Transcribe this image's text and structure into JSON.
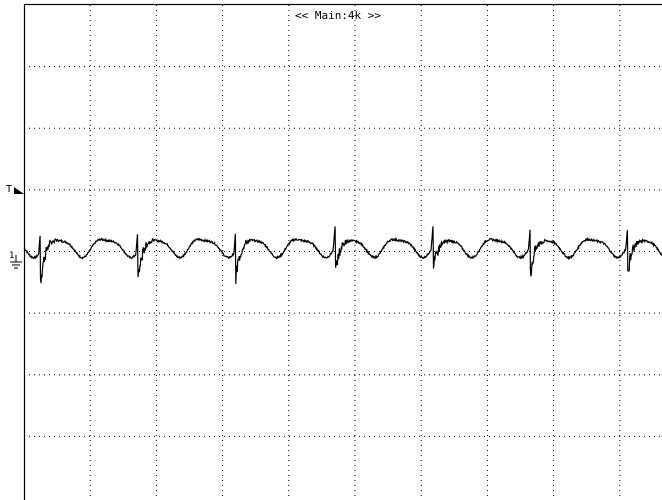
{
  "header": {
    "label": "<< Main:4k >>"
  },
  "markers": {
    "trigger": "T",
    "ground": "1"
  },
  "chart_data": {
    "type": "line",
    "grid": true,
    "divisions": {
      "x": 10,
      "y": 8
    },
    "series": [
      {
        "color": "#000000",
        "glitch_times_div": [
          0.25,
          1.72,
          3.2,
          4.7,
          6.18,
          7.65,
          9.12
        ]
      }
    ]
  }
}
